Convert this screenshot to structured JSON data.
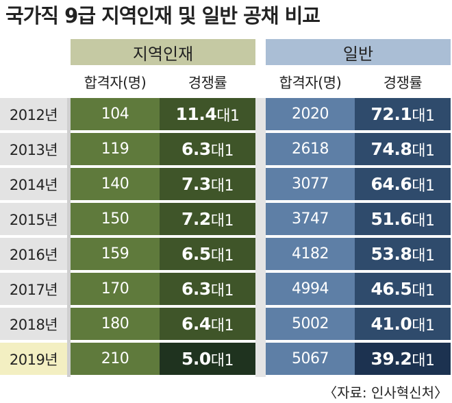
{
  "header": {
    "title": "국가직 9급 지역인재 및 일반 공채 비교"
  },
  "table": {
    "groups": [
      "지역인재",
      "일반"
    ],
    "columns": [
      "합격자(명)",
      "경쟁률",
      "합격자(명)",
      "경쟁률"
    ],
    "rows": [
      [
        "2012년",
        "104",
        {
          "number": "11.4",
          "suffix": "대1"
        },
        "2020",
        {
          "number": "72.1",
          "suffix": "대1"
        }
      ],
      [
        "2013년",
        "119",
        {
          "number": "6.3",
          "suffix": "대1"
        },
        "2618",
        {
          "number": "74.8",
          "suffix": "대1"
        }
      ],
      [
        "2014년",
        "140",
        {
          "number": "7.3",
          "suffix": "대1"
        },
        "3077",
        {
          "number": "64.6",
          "suffix": "대1"
        }
      ],
      [
        "2015년",
        "150",
        {
          "number": "7.2",
          "suffix": "대1"
        },
        "3747",
        {
          "number": "51.6",
          "suffix": "대1"
        }
      ],
      [
        "2016년",
        "159",
        {
          "number": "6.5",
          "suffix": "대1"
        },
        "4182",
        {
          "number": "53.8",
          "suffix": "대1"
        }
      ],
      [
        "2017년",
        "170",
        {
          "number": "6.3",
          "suffix": "대1"
        },
        "4994",
        {
          "number": "46.5",
          "suffix": "대1"
        }
      ],
      [
        "2018년",
        "180",
        {
          "number": "6.4",
          "suffix": "대1"
        },
        "5002",
        {
          "number": "41.0",
          "suffix": "대1"
        }
      ],
      [
        "2019년",
        "210",
        {
          "number": "5.0",
          "suffix": "대1"
        },
        "5067",
        {
          "number": "39.2",
          "suffix": "대1"
        }
      ]
    ]
  },
  "footer": {
    "source": "〈자료: 인사혁신처〉"
  }
}
